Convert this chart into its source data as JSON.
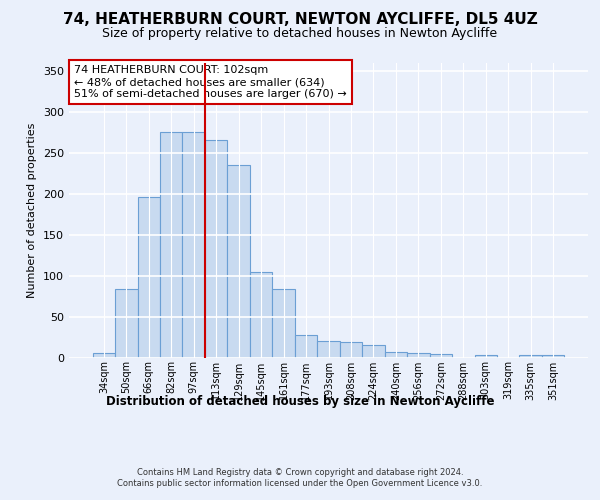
{
  "title": "74, HEATHERBURN COURT, NEWTON AYCLIFFE, DL5 4UZ",
  "subtitle": "Size of property relative to detached houses in Newton Aycliffe",
  "xlabel": "Distribution of detached houses by size in Newton Aycliffe",
  "ylabel": "Number of detached properties",
  "bin_labels": [
    "34sqm",
    "50sqm",
    "66sqm",
    "82sqm",
    "97sqm",
    "113sqm",
    "129sqm",
    "145sqm",
    "161sqm",
    "177sqm",
    "193sqm",
    "208sqm",
    "224sqm",
    "240sqm",
    "256sqm",
    "272sqm",
    "288sqm",
    "303sqm",
    "319sqm",
    "335sqm",
    "351sqm"
  ],
  "bar_heights": [
    6,
    84,
    196,
    275,
    275,
    265,
    235,
    104,
    84,
    27,
    20,
    19,
    15,
    7,
    5,
    4,
    0,
    3,
    0,
    3,
    3
  ],
  "bar_color": "#c8daf0",
  "bar_edge_color": "#6b9fd4",
  "property_line_color": "#cc0000",
  "annotation_text": "74 HEATHERBURN COURT: 102sqm\n← 48% of detached houses are smaller (634)\n51% of semi-detached houses are larger (670) →",
  "annotation_box_edge_color": "#cc0000",
  "ylim": [
    0,
    360
  ],
  "yticks": [
    0,
    50,
    100,
    150,
    200,
    250,
    300,
    350
  ],
  "footer_text": "Contains HM Land Registry data © Crown copyright and database right 2024.\nContains public sector information licensed under the Open Government Licence v3.0.",
  "bg_color": "#eaf0fb",
  "plot_bg_color": "#eaf0fb",
  "grid_color": "white",
  "title_fontsize": 11,
  "subtitle_fontsize": 9
}
